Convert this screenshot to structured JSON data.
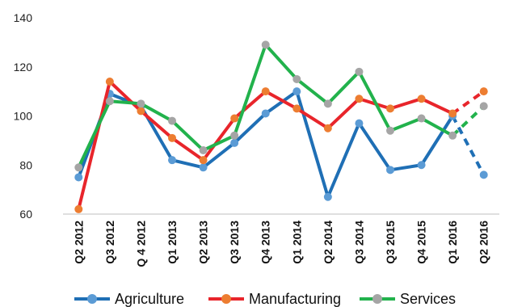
{
  "chart_data": {
    "type": "line",
    "categories": [
      "Q2 2012",
      "Q3 2012",
      "Q 4 2012",
      "Q1 2013",
      "Q2 2013",
      "Q3 2013",
      "Q4 2013",
      "Q1 2014",
      "Q2 2014",
      "Q3 2014",
      "Q3 2015",
      "Q4 2015",
      "Q1 2016",
      "Q2 2016"
    ],
    "ylim": [
      60,
      140
    ],
    "yticks": [
      60,
      80,
      100,
      120,
      140
    ],
    "grid": false,
    "legend_position": "bottom",
    "projected_from_index": 12,
    "series": [
      {
        "name": "Agriculture",
        "line_color": "#1f6fb5",
        "marker_color": "#5b9bd5",
        "values": [
          75,
          109,
          104,
          82,
          79,
          89,
          101,
          110,
          67,
          97,
          78,
          80,
          100,
          76
        ]
      },
      {
        "name": "Manufacturing",
        "line_color": "#e8252b",
        "marker_color": "#ed7d31",
        "values": [
          62,
          114,
          102,
          91,
          82,
          99,
          110,
          103,
          95,
          107,
          103,
          107,
          101,
          110
        ]
      },
      {
        "name": "Services",
        "line_color": "#22b24c",
        "marker_color": "#a5a5a5",
        "values": [
          79,
          106,
          105,
          98,
          86,
          92,
          129,
          115,
          105,
          118,
          94,
          99,
          92,
          104
        ]
      }
    ]
  }
}
